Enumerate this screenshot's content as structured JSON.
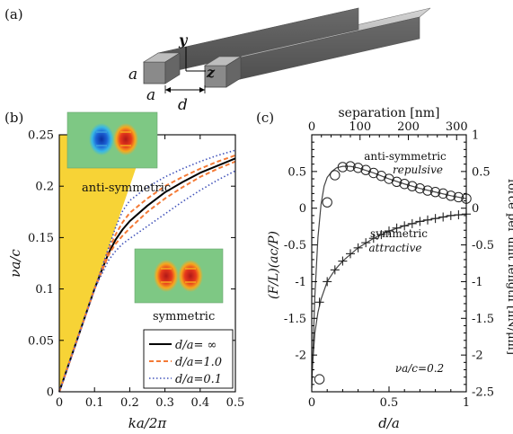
{
  "panel_labels": {
    "a": "(a)",
    "b": "(b)",
    "c": "(c)"
  },
  "panel_a": {
    "axis_y": "y",
    "axis_z": "z",
    "dim_a_height": "a",
    "dim_a_width": "a",
    "dim_d": "d"
  },
  "chart_data": [
    {
      "type": "line",
      "panel": "(b)",
      "xlabel": "ka/2π",
      "ylabel": "νa/c",
      "xlim": [
        0,
        0.5
      ],
      "ylim": [
        0,
        0.25
      ],
      "xticks": [
        "0",
        "0.1",
        "0.2",
        "0.3",
        "0.4",
        "0.5"
      ],
      "yticks": [
        "0",
        "0.05",
        "0.1",
        "0.15",
        "0.2",
        "0.25"
      ],
      "light_cone_fill": "#f7d336",
      "legend": {
        "placement": "bottom-right"
      },
      "annotations": {
        "top": "anti-symmetric",
        "bottom": "symmetric"
      },
      "series": [
        {
          "name": "d/a= ∞",
          "color": "#000000",
          "style": "solid",
          "role": "single",
          "x": [
            0,
            0.05,
            0.1,
            0.14,
            0.16,
            0.18,
            0.2,
            0.25,
            0.3,
            0.35,
            0.4,
            0.45,
            0.5
          ],
          "y": [
            0,
            0.05,
            0.1,
            0.135,
            0.148,
            0.158,
            0.166,
            0.181,
            0.194,
            0.204,
            0.213,
            0.22,
            0.227
          ]
        },
        {
          "name": "d/a=1.0",
          "color": "#f47a36",
          "style": "dashed",
          "role": "upper",
          "x": [
            0,
            0.05,
            0.1,
            0.14,
            0.16,
            0.18,
            0.2,
            0.25,
            0.3,
            0.35,
            0.4,
            0.45,
            0.5
          ],
          "y": [
            0,
            0.05,
            0.1,
            0.138,
            0.153,
            0.165,
            0.174,
            0.188,
            0.2,
            0.209,
            0.217,
            0.224,
            0.23
          ]
        },
        {
          "name": "d/a=1.0",
          "color": "#f47a36",
          "style": "dashed",
          "role": "lower",
          "x": [
            0,
            0.05,
            0.1,
            0.14,
            0.16,
            0.18,
            0.2,
            0.25,
            0.3,
            0.35,
            0.4,
            0.45,
            0.5
          ],
          "y": [
            0,
            0.05,
            0.1,
            0.133,
            0.144,
            0.152,
            0.159,
            0.175,
            0.188,
            0.199,
            0.209,
            0.217,
            0.224
          ]
        },
        {
          "name": "d/a=0.1",
          "color": "#4455bb",
          "style": "dotted",
          "role": "upper",
          "x": [
            0,
            0.05,
            0.1,
            0.14,
            0.16,
            0.18,
            0.2,
            0.25,
            0.3,
            0.35,
            0.4,
            0.45,
            0.5
          ],
          "y": [
            0,
            0.05,
            0.1,
            0.14,
            0.16,
            0.176,
            0.186,
            0.199,
            0.209,
            0.217,
            0.224,
            0.23,
            0.235
          ]
        },
        {
          "name": "d/a=0.1",
          "color": "#4455bb",
          "style": "dotted",
          "role": "lower",
          "x": [
            0,
            0.05,
            0.1,
            0.14,
            0.16,
            0.18,
            0.2,
            0.25,
            0.3,
            0.35,
            0.4,
            0.45,
            0.5
          ],
          "y": [
            0,
            0.05,
            0.1,
            0.128,
            0.137,
            0.144,
            0.149,
            0.161,
            0.173,
            0.185,
            0.196,
            0.206,
            0.215
          ]
        }
      ]
    },
    {
      "type": "scatter",
      "panel": "(c)",
      "xlabel": "d/a",
      "ylabel": "(F/L)(ac/P)",
      "top_xlabel": "separation [nm]",
      "right_ylabel": "force per unit length [nN/μm]",
      "xlim": [
        0,
        1
      ],
      "ylim": [
        -2.5,
        1
      ],
      "top_xlim": [
        0,
        320
      ],
      "right_ylim": [
        -2.5,
        1
      ],
      "xticks": [
        "0",
        "0.5",
        "1"
      ],
      "yticks": [
        "-2",
        "-1.5",
        "-1",
        "-0.5",
        "0",
        "0.5"
      ],
      "top_xticks": [
        "0",
        "100",
        "200",
        "300"
      ],
      "right_yticks": [
        "-2.5",
        "-2",
        "-1.5",
        "-1",
        "-0.5",
        "0",
        "0.5",
        "1"
      ],
      "annotations": {
        "anti_title": "anti-symmetric",
        "anti_sub": "repulsive",
        "sym_title": "symmetric",
        "sym_sub": "attractive",
        "freq": "νa/c=0.2"
      },
      "series": [
        {
          "name": "anti-symmetric",
          "marker": "circle",
          "x": [
            0.05,
            0.1,
            0.15,
            0.2,
            0.25,
            0.3,
            0.35,
            0.4,
            0.45,
            0.5,
            0.55,
            0.6,
            0.65,
            0.7,
            0.75,
            0.8,
            0.85,
            0.9,
            0.95,
            1.0
          ],
          "y": [
            -2.33,
            0.08,
            0.45,
            0.56,
            0.57,
            0.55,
            0.52,
            0.48,
            0.44,
            0.4,
            0.36,
            0.33,
            0.3,
            0.27,
            0.24,
            0.22,
            0.2,
            0.17,
            0.15,
            0.13
          ]
        },
        {
          "name": "symmetric",
          "marker": "plus",
          "x": [
            0.05,
            0.1,
            0.15,
            0.2,
            0.25,
            0.3,
            0.35,
            0.4,
            0.45,
            0.5,
            0.55,
            0.6,
            0.65,
            0.7,
            0.75,
            0.8,
            0.85,
            0.9,
            0.95,
            1.0
          ],
          "y": [
            -1.28,
            -1.0,
            -0.84,
            -0.72,
            -0.62,
            -0.54,
            -0.47,
            -0.41,
            -0.36,
            -0.31,
            -0.27,
            -0.24,
            -0.21,
            -0.18,
            -0.16,
            -0.14,
            -0.12,
            -0.1,
            -0.09,
            -0.08
          ]
        }
      ],
      "fit_curves": {
        "anti": {
          "x": [
            0.0,
            0.02,
            0.04,
            0.06,
            0.08,
            0.1,
            0.13,
            0.16,
            0.2,
            0.25,
            0.3,
            0.4,
            0.5,
            0.6,
            0.7,
            0.8,
            0.9,
            1.0
          ],
          "y": [
            -2.45,
            -1.2,
            -0.4,
            0.05,
            0.3,
            0.42,
            0.5,
            0.55,
            0.57,
            0.57,
            0.55,
            0.48,
            0.4,
            0.33,
            0.27,
            0.22,
            0.17,
            0.13
          ]
        },
        "sym": {
          "x": [
            0.0,
            0.02,
            0.04,
            0.06,
            0.1,
            0.15,
            0.2,
            0.3,
            0.4,
            0.5,
            0.6,
            0.7,
            0.8,
            0.9,
            1.0
          ],
          "y": [
            -2.3,
            -1.7,
            -1.42,
            -1.24,
            -1.0,
            -0.84,
            -0.72,
            -0.54,
            -0.41,
            -0.31,
            -0.24,
            -0.18,
            -0.14,
            -0.1,
            -0.08
          ]
        }
      }
    }
  ]
}
